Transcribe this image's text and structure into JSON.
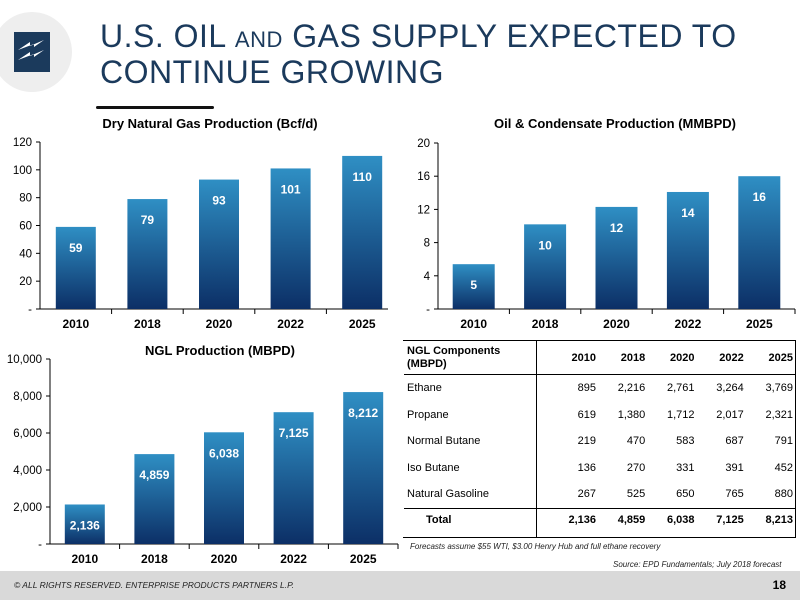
{
  "header": {
    "title_line1_a": "U.S. OIL ",
    "title_line1_b": "AND",
    "title_line1_c": " GAS SUPPLY EXPECTED TO",
    "title_line2": "CONTINUE GROWING"
  },
  "colors": {
    "bar_light": "#2f8fc4",
    "bar_dark": "#0c2f66",
    "title": "#1b3a5c",
    "logo": "#1b3a5c"
  },
  "chart_data": [
    {
      "id": "gas",
      "type": "bar",
      "title": "Dry Natural Gas Production (Bcf/d)",
      "categories": [
        "2010",
        "2018",
        "2020",
        "2022",
        "2025"
      ],
      "values": [
        59,
        79,
        93,
        101,
        110
      ],
      "value_labels": [
        "59",
        "79",
        "93",
        "101",
        "110"
      ],
      "ylim": [
        0,
        120
      ],
      "yticks": [
        "-",
        "20",
        "40",
        "60",
        "80",
        "100",
        "120"
      ],
      "grid": false
    },
    {
      "id": "oil",
      "type": "bar",
      "title": "Oil & Condensate Production (MMBPD)",
      "categories": [
        "2010",
        "2018",
        "2020",
        "2022",
        "2025"
      ],
      "values": [
        5.4,
        10.2,
        12.3,
        14.1,
        16.0
      ],
      "value_labels": [
        "5",
        "10",
        "12",
        "14",
        "16"
      ],
      "ylim": [
        0,
        20
      ],
      "yticks": [
        "-",
        "4",
        "8",
        "12",
        "16",
        "20"
      ],
      "grid": false
    },
    {
      "id": "ngl",
      "type": "bar",
      "title": "NGL Production (MBPD)",
      "categories": [
        "2010",
        "2018",
        "2020",
        "2022",
        "2025"
      ],
      "values": [
        2136,
        4859,
        6038,
        7125,
        8212
      ],
      "value_labels": [
        "2,136",
        "4,859",
        "6,038",
        "7,125",
        "8,212"
      ],
      "ylim": [
        0,
        10000
      ],
      "yticks": [
        "-",
        "2,000",
        "4,000",
        "6,000",
        "8,000",
        "10,000"
      ],
      "grid": false
    }
  ],
  "table": {
    "header_line1": "NGL Components",
    "header_line2": "(MBPD)",
    "years": [
      "2010",
      "2018",
      "2020",
      "2022",
      "2025"
    ],
    "rows": [
      {
        "name": "Ethane",
        "values": [
          "895",
          "2,216",
          "2,761",
          "3,264",
          "3,769"
        ]
      },
      {
        "name": "Propane",
        "values": [
          "619",
          "1,380",
          "1,712",
          "2,017",
          "2,321"
        ]
      },
      {
        "name": "Normal Butane",
        "values": [
          "219",
          "470",
          "583",
          "687",
          "791"
        ]
      },
      {
        "name": "Iso Butane",
        "values": [
          "136",
          "270",
          "331",
          "391",
          "452"
        ]
      },
      {
        "name": "Natural Gasoline",
        "values": [
          "267",
          "525",
          "650",
          "765",
          "880"
        ]
      }
    ],
    "total": {
      "name": "Total",
      "values": [
        "2,136",
        "4,859",
        "6,038",
        "7,125",
        "8,213"
      ]
    }
  },
  "notes": {
    "footnote": "Forecasts assume $55 WTI, $3.00 Henry Hub and full ethane recovery",
    "source": "Source:  EPD Fundamentals; July 2018 forecast"
  },
  "footer": {
    "copyright": "© ALL RIGHTS RESERVED. ENTERPRISE PRODUCTS PARTNERS L.P.",
    "page": "18"
  }
}
